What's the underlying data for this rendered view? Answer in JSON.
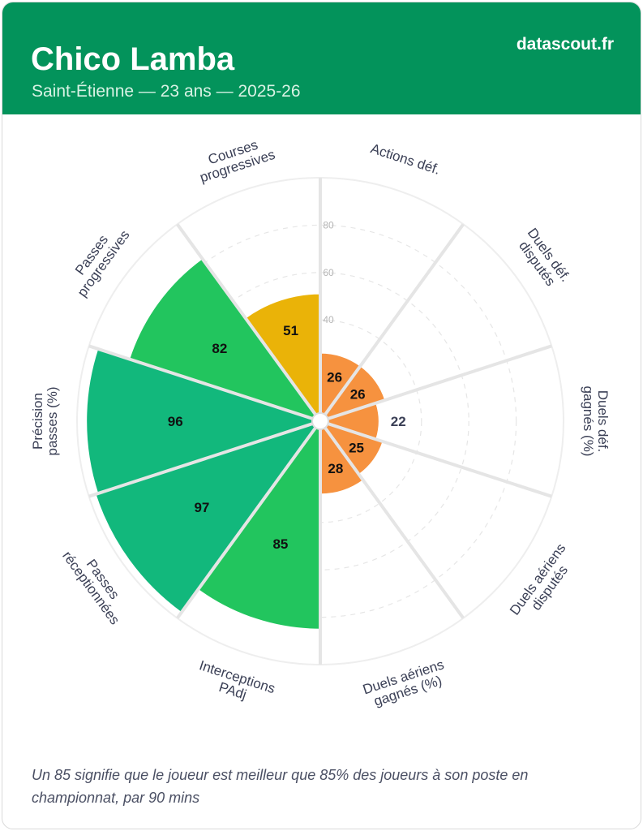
{
  "header": {
    "player_name": "Chico Lamba",
    "subtitle": "Saint-Étienne — 23 ans — 2025-26",
    "site": "datascout.fr"
  },
  "footnote": "Un 85 signifie que le joueur est meilleur que 85% des joueurs à son poste en championnat, par 90 mins",
  "colors": {
    "header_bg": "#03935b",
    "high": "#1bb877",
    "good": "#22c55e",
    "medium": "#eab308",
    "low": "#f6923f"
  },
  "chart_data": {
    "type": "polar-bar",
    "rlim": [
      0,
      100
    ],
    "ticks": [
      "40",
      "60",
      "80"
    ],
    "tick_values": [
      40,
      60,
      80
    ],
    "grid": true,
    "categories": [
      {
        "label": [
          "Actions déf."
        ],
        "value": 26,
        "value_label": "26",
        "color": "#f6923f"
      },
      {
        "label": [
          "Duels déf.",
          "disputés"
        ],
        "value": 26,
        "value_label": "26",
        "color": "#f6923f"
      },
      {
        "label": [
          "Duels déf.",
          "gagnés (%)"
        ],
        "value": 22,
        "value_label": "22",
        "color": "#f6923f"
      },
      {
        "label": [
          "Duels aériens",
          "disputés"
        ],
        "value": 25,
        "value_label": "25",
        "color": "#f6923f"
      },
      {
        "label": [
          "Duels aériens",
          "gagnés (%)"
        ],
        "value": 28,
        "value_label": "28",
        "color": "#f6923f"
      },
      {
        "label": [
          "Interceptions",
          "PAdj"
        ],
        "value": 85,
        "value_label": "85",
        "color": "#22c55e"
      },
      {
        "label": [
          "Passes",
          "réceptionnées"
        ],
        "value": 97,
        "value_label": "97",
        "color": "#12b87c"
      },
      {
        "label": [
          "Précision",
          "passes (%)"
        ],
        "value": 96,
        "value_label": "96",
        "color": "#12b87c"
      },
      {
        "label": [
          "Passes",
          "progressives"
        ],
        "value": 82,
        "value_label": "82",
        "color": "#22c55e"
      },
      {
        "label": [
          "Courses",
          "progressives"
        ],
        "value": 51,
        "value_label": "51",
        "color": "#eab308"
      }
    ]
  }
}
